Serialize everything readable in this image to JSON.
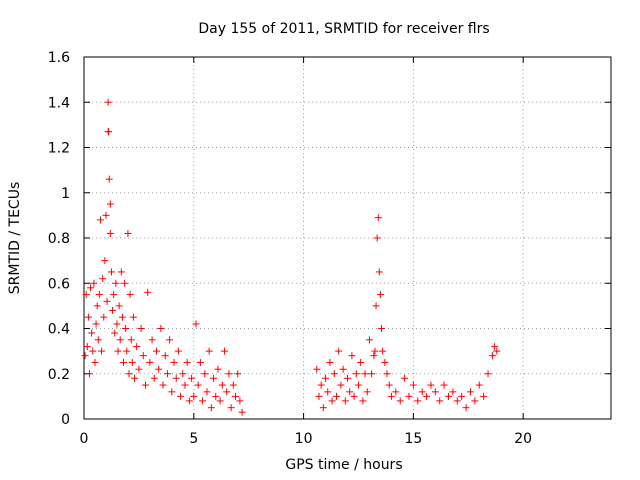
{
  "chart_data": {
    "type": "scatter",
    "title": "Day 155 of 2011, SRMTID for receiver flrs",
    "xlabel": "GPS time / hours",
    "ylabel": "SRMTID / TECUs",
    "xlim": [
      0,
      24
    ],
    "ylim": [
      0,
      1.6
    ],
    "xticks": [
      0,
      5,
      10,
      15,
      20
    ],
    "yticks": [
      0,
      0.2,
      0.4,
      0.6,
      0.8,
      1,
      1.2,
      1.4,
      1.6
    ],
    "xtick_labels": [
      "0",
      "5",
      "10",
      "15",
      "20"
    ],
    "ytick_labels": [
      "0",
      "0.2",
      "0.4",
      "0.6",
      "0.8",
      "1",
      "1.2",
      "1.4",
      "1.6"
    ],
    "grid": true,
    "marker": "+",
    "series": [
      {
        "name": "SRMTID",
        "color": "#ff0000",
        "x": [
          0.05,
          0.1,
          0.15,
          0.2,
          0.25,
          0.3,
          0.35,
          0.4,
          0.45,
          0.5,
          0.55,
          0.6,
          0.65,
          0.7,
          0.75,
          0.8,
          0.85,
          0.9,
          0.95,
          1.0,
          1.05,
          1.1,
          1.1,
          1.12,
          1.15,
          1.2,
          1.2,
          1.25,
          1.3,
          1.35,
          1.4,
          1.45,
          1.5,
          1.55,
          1.6,
          1.65,
          1.7,
          1.75,
          1.8,
          1.85,
          1.9,
          1.95,
          2.0,
          2.05,
          2.1,
          2.15,
          2.2,
          2.25,
          2.3,
          2.4,
          2.5,
          2.6,
          2.7,
          2.8,
          2.9,
          3.0,
          3.1,
          3.2,
          3.3,
          3.4,
          3.5,
          3.6,
          3.7,
          3.8,
          3.9,
          4.0,
          4.1,
          4.2,
          4.3,
          4.4,
          4.5,
          4.6,
          4.7,
          4.8,
          4.9,
          5.0,
          5.1,
          5.2,
          5.3,
          5.4,
          5.5,
          5.6,
          5.7,
          5.8,
          5.9,
          6.0,
          6.1,
          6.2,
          6.3,
          6.4,
          6.5,
          6.6,
          6.7,
          6.8,
          6.9,
          7.0,
          7.1,
          7.2,
          10.6,
          10.7,
          10.8,
          10.9,
          11.0,
          11.1,
          11.2,
          11.3,
          11.4,
          11.5,
          11.6,
          11.7,
          11.8,
          11.9,
          12.0,
          12.1,
          12.2,
          12.3,
          12.4,
          12.5,
          12.6,
          12.7,
          12.8,
          12.9,
          13.0,
          13.1,
          13.2,
          13.25,
          13.3,
          13.35,
          13.4,
          13.45,
          13.5,
          13.55,
          13.6,
          13.7,
          13.8,
          13.9,
          14.0,
          14.2,
          14.4,
          14.6,
          14.8,
          15.0,
          15.2,
          15.4,
          15.6,
          15.8,
          16.0,
          16.2,
          16.4,
          16.6,
          16.8,
          17.0,
          17.2,
          17.4,
          17.6,
          17.8,
          18.0,
          18.2,
          18.4,
          18.6,
          18.7,
          18.8
        ],
        "y": [
          0.28,
          0.55,
          0.32,
          0.45,
          0.2,
          0.58,
          0.38,
          0.3,
          0.6,
          0.25,
          0.42,
          0.5,
          0.35,
          0.55,
          0.88,
          0.3,
          0.62,
          0.45,
          0.7,
          0.9,
          0.52,
          1.27,
          1.4,
          1.27,
          1.06,
          0.95,
          0.82,
          0.65,
          0.48,
          0.55,
          0.38,
          0.6,
          0.42,
          0.3,
          0.5,
          0.35,
          0.65,
          0.45,
          0.25,
          0.6,
          0.4,
          0.3,
          0.82,
          0.2,
          0.55,
          0.35,
          0.25,
          0.45,
          0.18,
          0.32,
          0.22,
          0.4,
          0.28,
          0.15,
          0.56,
          0.25,
          0.35,
          0.18,
          0.3,
          0.22,
          0.4,
          0.15,
          0.28,
          0.2,
          0.35,
          0.12,
          0.25,
          0.18,
          0.3,
          0.1,
          0.2,
          0.15,
          0.25,
          0.08,
          0.18,
          0.1,
          0.42,
          0.15,
          0.25,
          0.08,
          0.2,
          0.12,
          0.3,
          0.05,
          0.18,
          0.1,
          0.22,
          0.08,
          0.15,
          0.3,
          0.12,
          0.2,
          0.05,
          0.15,
          0.1,
          0.2,
          0.08,
          0.03,
          0.22,
          0.1,
          0.15,
          0.05,
          0.18,
          0.12,
          0.25,
          0.08,
          0.2,
          0.1,
          0.3,
          0.15,
          0.22,
          0.08,
          0.18,
          0.12,
          0.28,
          0.1,
          0.2,
          0.15,
          0.25,
          0.08,
          0.2,
          0.12,
          0.35,
          0.2,
          0.28,
          0.3,
          0.5,
          0.8,
          0.89,
          0.65,
          0.55,
          0.4,
          0.3,
          0.25,
          0.2,
          0.15,
          0.1,
          0.12,
          0.08,
          0.18,
          0.1,
          0.15,
          0.08,
          0.12,
          0.1,
          0.15,
          0.12,
          0.08,
          0.15,
          0.1,
          0.12,
          0.08,
          0.1,
          0.05,
          0.12,
          0.08,
          0.15,
          0.1,
          0.2,
          0.28,
          0.32,
          0.3
        ]
      }
    ]
  }
}
